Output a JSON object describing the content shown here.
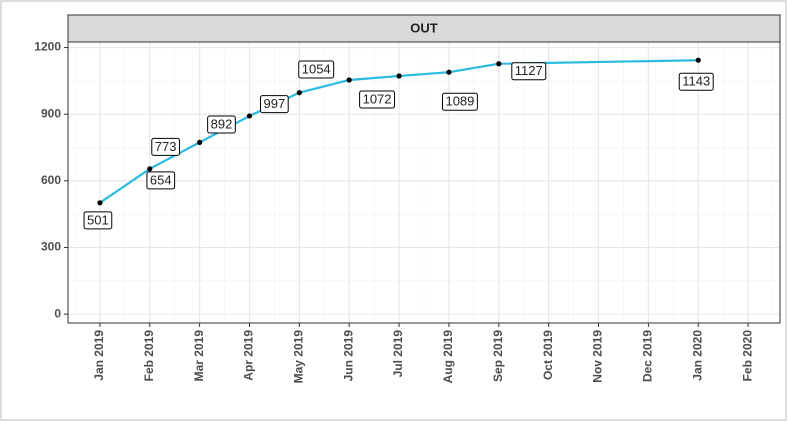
{
  "chart_data": {
    "type": "line",
    "strip_title": "OUT",
    "x": [
      "Jan 2019",
      "Feb 2019",
      "Mar 2019",
      "Apr 2019",
      "May 2019",
      "Jun 2019",
      "Jul 2019",
      "Aug 2019",
      "Sep 2019",
      "Jan 2020"
    ],
    "series": [
      {
        "color": "#2bbbe0",
        "values": [
          501,
          654,
          773,
          892,
          997,
          1054,
          1072,
          1089,
          1127,
          1143
        ]
      }
    ],
    "xticks": [
      "Jan 2019",
      "Feb 2019",
      "Mar 2019",
      "Apr 2019",
      "May 2019",
      "Jun 2019",
      "Jul 2019",
      "Aug 2019",
      "Sep 2019",
      "Oct 2019",
      "Nov 2019",
      "Dec 2019",
      "Jan 2020",
      "Feb 2020"
    ],
    "ylim": [
      -40,
      1225
    ],
    "yticks": [
      0,
      300,
      600,
      900,
      1200
    ],
    "grid": true,
    "data_labels": true
  }
}
